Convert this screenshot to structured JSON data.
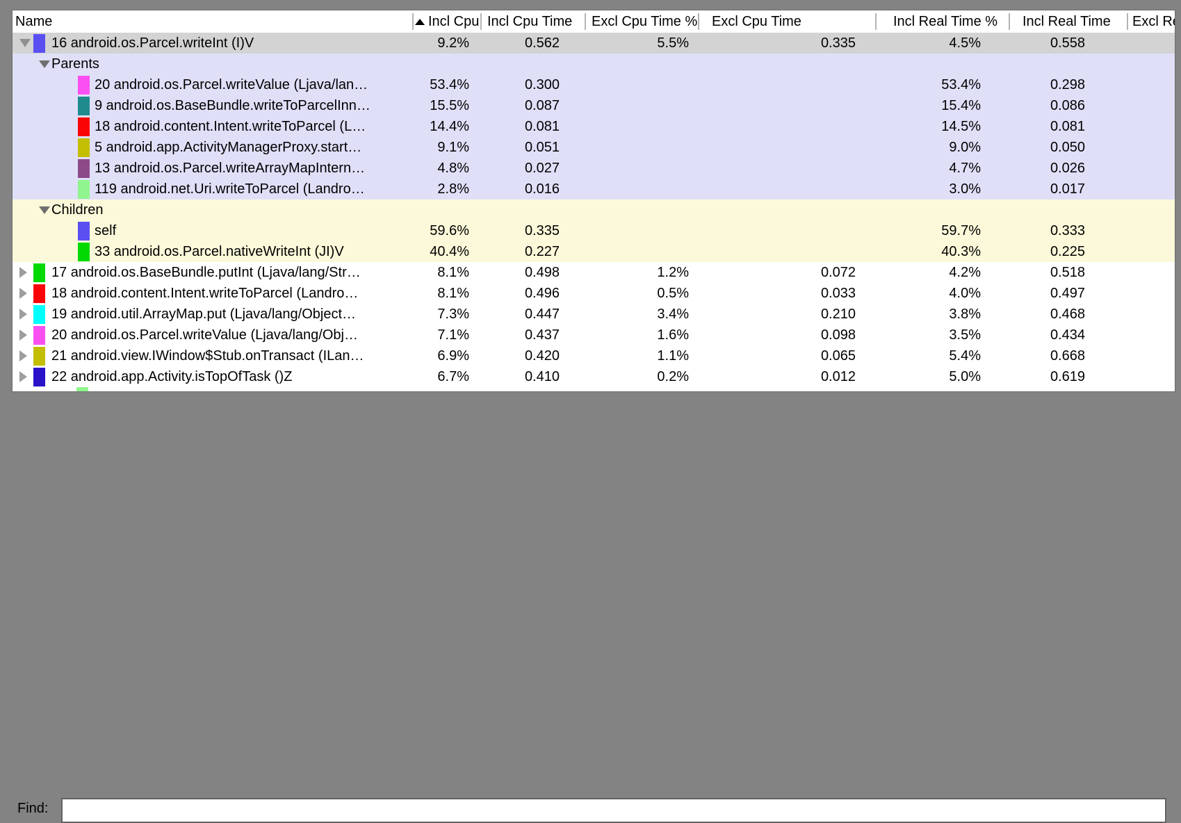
{
  "table": {
    "columns": [
      {
        "label": "Name",
        "sorted": false
      },
      {
        "label": "Incl Cpu Tir",
        "sorted": true
      },
      {
        "label": "Incl Cpu Time",
        "sorted": false
      },
      {
        "label": "Excl Cpu Time %",
        "sorted": false
      },
      {
        "label": "Excl Cpu Time",
        "sorted": false
      },
      {
        "label": "Incl Real Time %",
        "sorted": false
      },
      {
        "label": "Incl Real Time",
        "sorted": false
      },
      {
        "label": "Excl Real",
        "sorted": false
      }
    ],
    "sort_icon": "ascending-triangle",
    "section_colors": {
      "selected_bg": "#d3d3d3",
      "parents_bg": "#e0dff8",
      "children_bg": "#fbf9d9"
    },
    "rows": [
      {
        "kind": "method",
        "level": 0,
        "disclosure": "expanded",
        "chip_color": "#5a50f2",
        "bg": "selected",
        "name": "16 android.os.Parcel.writeInt (I)V",
        "values": [
          "9.2%",
          "0.562",
          "5.5%",
          "0.335",
          "4.5%",
          "0.558"
        ]
      },
      {
        "kind": "section",
        "level": 0,
        "disclosure": "expanded",
        "chip_color": null,
        "bg": "parents",
        "name": "Parents",
        "values": [
          "",
          "",
          "",
          "",
          "",
          ""
        ]
      },
      {
        "kind": "method",
        "level": 1,
        "disclosure": null,
        "chip_color": "#fa50f2",
        "bg": "parents",
        "name": "20 android.os.Parcel.writeValue (Ljava/lan…",
        "values": [
          "53.4%",
          "0.300",
          "",
          "",
          "53.4%",
          "0.298"
        ]
      },
      {
        "kind": "method",
        "level": 1,
        "disclosure": null,
        "chip_color": "#1f8b8c",
        "bg": "parents",
        "name": "9 android.os.BaseBundle.writeToParcelInn…",
        "values": [
          "15.5%",
          "0.087",
          "",
          "",
          "15.4%",
          "0.086"
        ]
      },
      {
        "kind": "method",
        "level": 1,
        "disclosure": null,
        "chip_color": "#fa0505",
        "bg": "parents",
        "name": "18 android.content.Intent.writeToParcel (L…",
        "values": [
          "14.4%",
          "0.081",
          "",
          "",
          "14.5%",
          "0.081"
        ]
      },
      {
        "kind": "method",
        "level": 1,
        "disclosure": null,
        "chip_color": "#c3be02",
        "bg": "parents",
        "name": "5 android.app.ActivityManagerProxy.start…",
        "values": [
          "9.1%",
          "0.051",
          "",
          "",
          "9.0%",
          "0.050"
        ]
      },
      {
        "kind": "method",
        "level": 1,
        "disclosure": null,
        "chip_color": "#8d4a89",
        "bg": "parents",
        "name": "13 android.os.Parcel.writeArrayMapIntern…",
        "values": [
          "4.8%",
          "0.027",
          "",
          "",
          "4.7%",
          "0.026"
        ]
      },
      {
        "kind": "method",
        "level": 1,
        "disclosure": null,
        "chip_color": "#90f58f",
        "bg": "parents",
        "name": "119 android.net.Uri.writeToParcel (Landro…",
        "values": [
          "2.8%",
          "0.016",
          "",
          "",
          "3.0%",
          "0.017"
        ]
      },
      {
        "kind": "section",
        "level": 0,
        "disclosure": "expanded",
        "chip_color": null,
        "bg": "children",
        "name": "Children",
        "values": [
          "",
          "",
          "",
          "",
          "",
          ""
        ]
      },
      {
        "kind": "method",
        "level": 1,
        "disclosure": null,
        "chip_color": "#5a50f2",
        "bg": "children",
        "name": "self",
        "values": [
          "59.6%",
          "0.335",
          "",
          "",
          "59.7%",
          "0.333"
        ]
      },
      {
        "kind": "method",
        "level": 1,
        "disclosure": null,
        "chip_color": "#02d902",
        "bg": "children",
        "name": "33 android.os.Parcel.nativeWriteInt (JI)V",
        "values": [
          "40.4%",
          "0.227",
          "",
          "",
          "40.3%",
          "0.225"
        ]
      },
      {
        "kind": "method",
        "level": 0,
        "disclosure": "collapsed",
        "chip_color": "#02d902",
        "bg": "white",
        "name": "17 android.os.BaseBundle.putInt (Ljava/lang/Str…",
        "values": [
          "8.1%",
          "0.498",
          "1.2%",
          "0.072",
          "4.2%",
          "0.518"
        ]
      },
      {
        "kind": "method",
        "level": 0,
        "disclosure": "collapsed",
        "chip_color": "#fa0505",
        "bg": "white",
        "name": "18 android.content.Intent.writeToParcel (Landro…",
        "values": [
          "8.1%",
          "0.496",
          "0.5%",
          "0.033",
          "4.0%",
          "0.497"
        ]
      },
      {
        "kind": "method",
        "level": 0,
        "disclosure": "collapsed",
        "chip_color": "#00ffff",
        "bg": "white",
        "name": "19 android.util.ArrayMap.put (Ljava/lang/Object…",
        "values": [
          "7.3%",
          "0.447",
          "3.4%",
          "0.210",
          "3.8%",
          "0.468"
        ]
      },
      {
        "kind": "method",
        "level": 0,
        "disclosure": "collapsed",
        "chip_color": "#fa50f2",
        "bg": "white",
        "name": "20 android.os.Parcel.writeValue (Ljava/lang/Obj…",
        "values": [
          "7.1%",
          "0.437",
          "1.6%",
          "0.098",
          "3.5%",
          "0.434"
        ]
      },
      {
        "kind": "method",
        "level": 0,
        "disclosure": "collapsed",
        "chip_color": "#c3be02",
        "bg": "white",
        "name": "21 android.view.IWindow$Stub.onTransact (ILan…",
        "values": [
          "6.9%",
          "0.420",
          "1.1%",
          "0.065",
          "5.4%",
          "0.668"
        ]
      },
      {
        "kind": "method",
        "level": 0,
        "disclosure": "collapsed",
        "chip_color": "#2a12c9",
        "bg": "white",
        "name": "22 android.app.Activity.isTopOfTask ()Z",
        "values": [
          "6.7%",
          "0.410",
          "0.2%",
          "0.012",
          "5.0%",
          "0.619"
        ]
      }
    ],
    "partial_row": {
      "chip_color": "#90f58f"
    }
  },
  "find": {
    "label": "Find:",
    "value": "",
    "placeholder": ""
  }
}
